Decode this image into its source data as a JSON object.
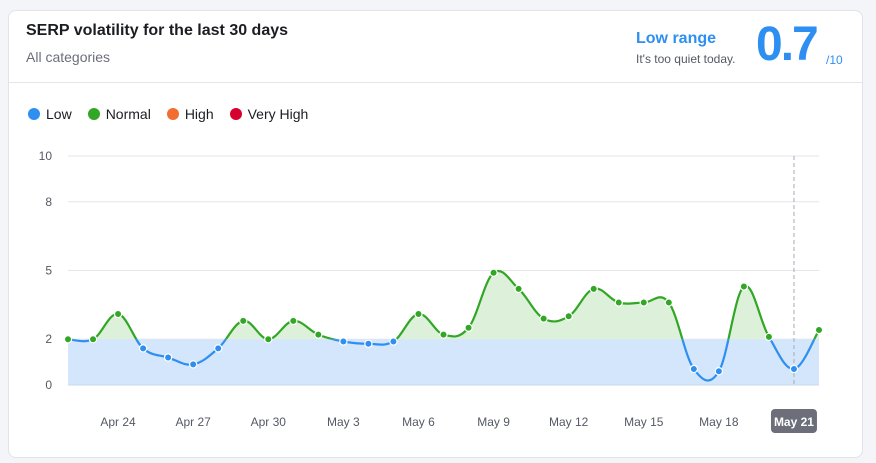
{
  "header": {
    "title": "SERP volatility for the last 30 days",
    "subtitle": "All categories",
    "range_label": "Low range",
    "range_note": "It's too quiet today.",
    "score": "0.7",
    "score_max": "/10"
  },
  "legend": [
    {
      "label": "Low",
      "color": "#2e8ff2"
    },
    {
      "label": "Normal",
      "color": "#32a625"
    },
    {
      "label": "High",
      "color": "#f26d30"
    },
    {
      "label": "Very High",
      "color": "#d6002e"
    }
  ],
  "chart_data": {
    "type": "area",
    "yticks": [
      0,
      2,
      5,
      8,
      10
    ],
    "ylim": [
      0,
      10
    ],
    "xtick_labels": [
      "Apr 24",
      "Apr 27",
      "Apr 30",
      "May 3",
      "May 6",
      "May 9",
      "May 12",
      "May 15",
      "May 18",
      "May 21"
    ],
    "highlight_label": "May 21",
    "threshold": 2,
    "x": [
      "Apr 22",
      "Apr 23",
      "Apr 24",
      "Apr 25",
      "Apr 26",
      "Apr 27",
      "Apr 28",
      "Apr 29",
      "Apr 30",
      "May 1",
      "May 2",
      "May 3",
      "May 4",
      "May 5",
      "May 6",
      "May 7",
      "May 8",
      "May 9",
      "May 10",
      "May 11",
      "May 12",
      "May 13",
      "May 14",
      "May 15",
      "May 16",
      "May 17",
      "May 18",
      "May 19",
      "May 20",
      "May 21",
      "May 22"
    ],
    "values": [
      2.0,
      2.0,
      3.1,
      1.6,
      1.2,
      0.9,
      1.6,
      2.8,
      2.0,
      2.8,
      2.2,
      1.9,
      1.8,
      1.9,
      3.1,
      2.2,
      2.5,
      4.9,
      4.2,
      2.9,
      3.0,
      4.2,
      3.6,
      3.6,
      3.6,
      0.7,
      0.6,
      4.3,
      2.1,
      0.7,
      2.4
    ],
    "colors": {
      "low": "#2e8ff2",
      "normal": "#32a625",
      "low_fill": "#d4e6fb",
      "normal_fill": "#dcf0da",
      "grid": "#e4e6ec",
      "cursor": "#a8aab3",
      "tick": "#555965",
      "highlight_bg": "#6c6e79"
    }
  }
}
